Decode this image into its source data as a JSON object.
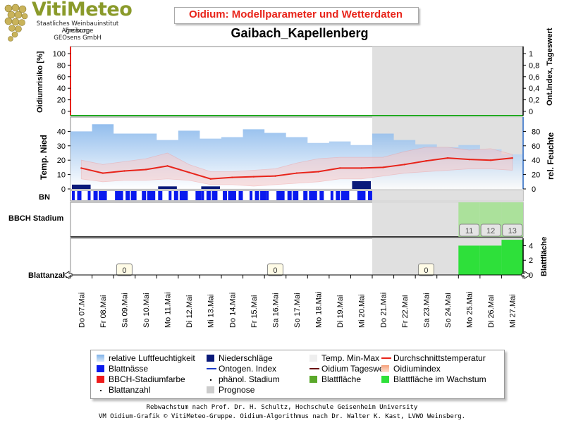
{
  "header": {
    "logo_text": "VitiMeteo",
    "logo_lines": [
      "Staatliches Weinbauinstitut Freiburg",
      "Agroscope",
      "GEOsens GmbH"
    ],
    "subtitle": "Oidium: Modellparameter und Wetterdaten",
    "title": "Gaibach_Kapellenberg"
  },
  "colors": {
    "temperature": "#e8241a",
    "precipitation": "#0a1a7a",
    "leaf_wetness": "#0a1aee",
    "humidity": "#7fb2ea",
    "forecast": "#dddddd",
    "leaf_area": "#9ee18a",
    "leaf_area_growth": "#2ee03a"
  },
  "chart_data": {
    "type": "line",
    "x": [
      "Do 07.Mai",
      "Fr 08.Mai",
      "Sa 09.Mai",
      "So 10.Mai",
      "Mo 11.Mai",
      "Di 12.Mai",
      "Mi 13.Mai",
      "Do 14.Mai",
      "Fr 15.Mai",
      "Sa 16.Mai",
      "So 17.Mai",
      "Mo 18.Mai",
      "Di 19.Mai",
      "Mi 20.Mai",
      "Do 21.Mai",
      "Fr 22.Mai",
      "Sa 23.Mai",
      "So 24.Mai",
      "Mo 25.Mai",
      "Di 26.Mai",
      "Mi 27.Mai"
    ],
    "forecast_start": "Do 21.Mai",
    "panels": {
      "risk": {
        "ylabel": "Oidiumrisiko [%]",
        "ylabel_right": "Ont.Index, Tageswert",
        "yticks_left": [
          0,
          20,
          40,
          60,
          80,
          100
        ],
        "yticks_right": [
          0,
          0.2,
          0.4,
          0.6,
          0.8,
          1
        ],
        "values": []
      },
      "weather": {
        "ylabel": "Temp. Nied",
        "ylabel_right": "rel. Feuchte",
        "yticks_left": [
          0,
          10,
          20,
          30,
          40
        ],
        "yticks_right": [
          0,
          20,
          40,
          60,
          80
        ],
        "humidity": [
          80,
          90,
          77,
          77,
          68,
          81,
          70,
          72,
          83,
          78,
          72,
          64,
          66,
          61,
          77,
          68,
          62,
          58,
          61,
          55,
          48
        ],
        "temperature_avg": [
          14.5,
          11,
          12.5,
          13.5,
          16,
          11.5,
          7,
          8,
          8.5,
          9,
          11,
          12,
          14.5,
          14.5,
          15,
          17,
          19.5,
          21.5,
          20.5,
          20,
          21.5
        ],
        "temperature_min": [
          7,
          5,
          6,
          6,
          7,
          6,
          3,
          3,
          2,
          3,
          4,
          5,
          7,
          7,
          9,
          11,
          12,
          13,
          14,
          14,
          13
        ],
        "temperature_max": [
          20,
          17,
          19,
          21,
          25,
          17,
          12,
          12,
          13,
          14,
          18,
          21,
          22,
          22,
          22,
          26,
          29,
          29,
          27,
          28,
          24
        ],
        "precipitation": [
          2.5,
          0,
          0,
          0,
          1.5,
          0,
          1.5,
          0,
          0,
          0,
          0,
          0,
          0,
          4.5,
          0,
          0,
          0,
          0,
          0,
          0,
          0
        ]
      },
      "bn": {
        "label": "BN"
      },
      "bbch": {
        "label": "BBCH Stadium",
        "stages": [
          {
            "day": "Mo 25.Mai",
            "value": "11"
          },
          {
            "day": "Di 26.Mai",
            "value": "12"
          },
          {
            "day": "Mi 27.Mai",
            "value": "13"
          }
        ]
      },
      "leaves": {
        "label": "Blattanzahl",
        "ylabel_right": "Blattfläche",
        "yticks_right": [
          0,
          2,
          4
        ],
        "counts": [
          {
            "day": "Sa 09.Mai",
            "value": "0"
          },
          {
            "day": "Sa 16.Mai",
            "value": "0"
          },
          {
            "day": "Sa 23.Mai",
            "value": "0"
          }
        ],
        "leaf_area": [
          {
            "day": "Mo 25.Mai",
            "value": 4
          },
          {
            "day": "Di 26.Mai",
            "value": 4
          },
          {
            "day": "Mi 27.Mai",
            "value": 4.8
          }
        ]
      }
    }
  },
  "legend": {
    "items": [
      {
        "label": "relative Luftfeuchtigkeit",
        "symbol": "gradient-blue"
      },
      {
        "label": "Niederschläge",
        "symbol": "navy-box"
      },
      {
        "label": "Temp. Min-Max",
        "symbol": "light-box"
      },
      {
        "label": "Durchschnittstemperatur",
        "symbol": "red-line"
      },
      {
        "label": "Blattnässe",
        "symbol": "blue-box"
      },
      {
        "label": "Ontogen. Index",
        "symbol": "blue-line"
      },
      {
        "label": "Oidium Tageswert",
        "symbol": "darkred-line"
      },
      {
        "label": "Oidiumindex",
        "symbol": "gradient-orange"
      },
      {
        "label": "BBCH-Stadiumfarbe",
        "symbol": "red-box"
      },
      {
        "label": "phänol. Stadium",
        "symbol": "dot"
      },
      {
        "label": "Blattfläche",
        "symbol": "green-box"
      },
      {
        "label": "Blattfläche im Wachstum",
        "symbol": "lightgreen-box"
      },
      {
        "label": "Blattanzahl",
        "symbol": "dot"
      },
      {
        "label": "Prognose",
        "symbol": "grey-box"
      }
    ]
  },
  "footer": {
    "line1": "Rebwachstum nach Prof. Dr. H. Schultz, Hochschule Geisenheim University",
    "line2": "VM Oidium-Grafik © VitiMeteo-Gruppe. Oidium-Algorithmus nach Dr. Walter K. Kast, LVWO Weinsberg."
  }
}
